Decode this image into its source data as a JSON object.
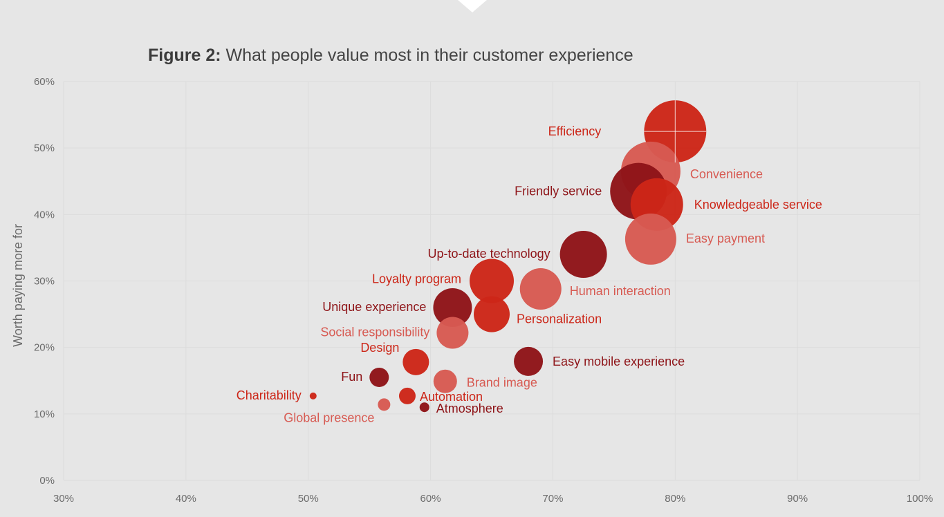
{
  "title": {
    "lead": "Figure 2:",
    "text": "What people value most in their customer experience"
  },
  "colors": {
    "background": "#e6e6e6",
    "grid": "#dcdcdc",
    "red": "#cc2618",
    "dark_red": "#8e1418",
    "light_red": "#d75a52"
  },
  "chart_data": {
    "type": "scatter",
    "subtype": "bubble",
    "title": "Figure 2: What people value most in their customer experience",
    "xlabel": "",
    "ylabel": "Worth paying more for",
    "xlim": [
      30,
      100
    ],
    "ylim": [
      0,
      60
    ],
    "x_ticks": [
      30,
      40,
      50,
      60,
      70,
      80,
      90,
      100
    ],
    "y_ticks": [
      0,
      10,
      20,
      30,
      40,
      50,
      60
    ],
    "x_tick_labels": [
      "30%",
      "40%",
      "50%",
      "60%",
      "70%",
      "80%",
      "90%",
      "100%"
    ],
    "y_tick_labels": [
      "0%",
      "10%",
      "20%",
      "30%",
      "40%",
      "50%",
      "60%"
    ],
    "grid": true,
    "legend": "none",
    "points": [
      {
        "label": "Efficiency",
        "x": 80,
        "y": 52.5,
        "size": 45,
        "color": "red"
      },
      {
        "label": "Convenience",
        "x": 78,
        "y": 46.5,
        "size": 43,
        "color": "light_red"
      },
      {
        "label": "Friendly service",
        "x": 77,
        "y": 43.5,
        "size": 41,
        "color": "dark_red"
      },
      {
        "label": "Knowledgeable service",
        "x": 78.5,
        "y": 41.5,
        "size": 38,
        "color": "red"
      },
      {
        "label": "Easy payment",
        "x": 78,
        "y": 36.3,
        "size": 37,
        "color": "light_red"
      },
      {
        "label": "Up-to-date technology",
        "x": 72.5,
        "y": 34,
        "size": 34,
        "color": "dark_red"
      },
      {
        "label": "Loyalty program",
        "x": 65,
        "y": 30,
        "size": 32,
        "color": "red"
      },
      {
        "label": "Human interaction",
        "x": 69,
        "y": 28.8,
        "size": 30,
        "color": "light_red"
      },
      {
        "label": "Unique experience",
        "x": 61.8,
        "y": 26,
        "size": 28,
        "color": "dark_red"
      },
      {
        "label": "Personalization",
        "x": 65,
        "y": 25,
        "size": 26,
        "color": "red"
      },
      {
        "label": "Social responsibility",
        "x": 61.8,
        "y": 22.2,
        "size": 23,
        "color": "light_red"
      },
      {
        "label": "Design",
        "x": 58.8,
        "y": 17.8,
        "size": 19,
        "color": "red"
      },
      {
        "label": "Easy mobile experience",
        "x": 68,
        "y": 17.9,
        "size": 21,
        "color": "dark_red"
      },
      {
        "label": "Brand image",
        "x": 61.2,
        "y": 14.9,
        "size": 17,
        "color": "light_red"
      },
      {
        "label": "Fun",
        "x": 55.8,
        "y": 15.5,
        "size": 14,
        "color": "dark_red"
      },
      {
        "label": "Automation",
        "x": 58.1,
        "y": 12.7,
        "size": 12,
        "color": "red"
      },
      {
        "label": "Charitability",
        "x": 50.4,
        "y": 12.7,
        "size": 5,
        "color": "red"
      },
      {
        "label": "Global presence",
        "x": 56.2,
        "y": 11.4,
        "size": 9,
        "color": "light_red"
      },
      {
        "label": "Atmosphere",
        "x": 59.5,
        "y": 11,
        "size": 7,
        "color": "dark_red"
      }
    ]
  }
}
